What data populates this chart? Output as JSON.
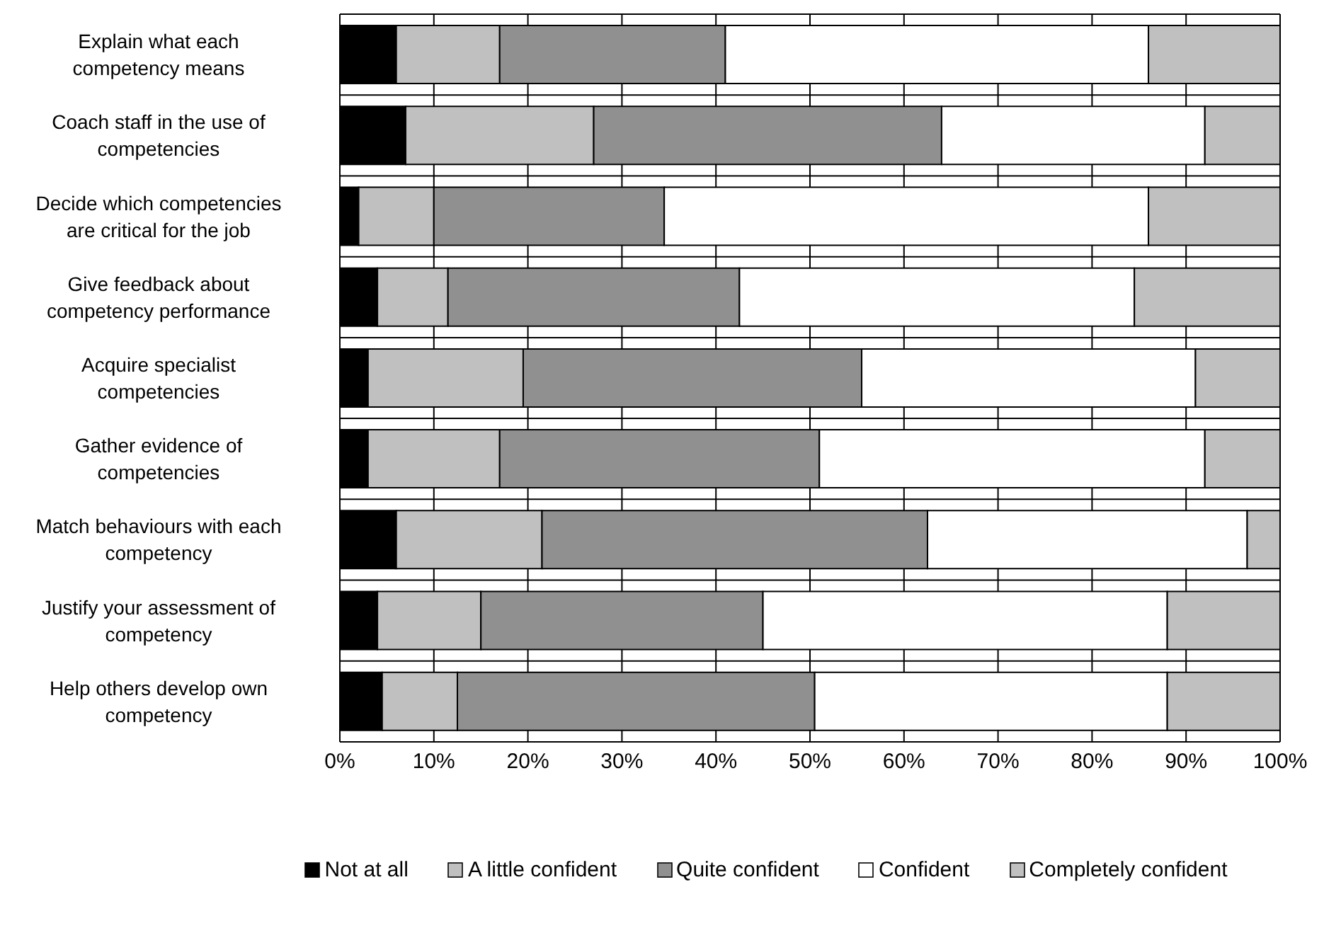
{
  "chart_data": {
    "type": "bar",
    "orientation": "horizontal",
    "stacked": true,
    "categories": [
      "Explain what each competency means",
      "Coach staff in the use of competencies",
      "Decide which competencies are critical for the job",
      "Give feedback about competency performance",
      "Acquire specialist competencies",
      "Gather evidence of competencies",
      "Match behaviours with each competency",
      "Justify your assessment of competency",
      "Help others develop own competency"
    ],
    "series": [
      {
        "name": "Not at all",
        "color": "#000000",
        "values": [
          6,
          7,
          2,
          4,
          3,
          3,
          6,
          4,
          4.5
        ]
      },
      {
        "name": "A little confident",
        "color": "#c0c0c0",
        "values": [
          11,
          20,
          8,
          7.5,
          16.5,
          14,
          15.5,
          11,
          8
        ]
      },
      {
        "name": "Quite confident",
        "color": "#909090",
        "values": [
          24,
          37,
          24.5,
          31,
          36,
          34,
          41,
          30,
          38
        ]
      },
      {
        "name": "Confident",
        "color": "#ffffff",
        "values": [
          45,
          28,
          51.5,
          42,
          35.5,
          41,
          34,
          43,
          37.5
        ]
      },
      {
        "name": "Completely confident",
        "color": "#c0c0c0",
        "values": [
          14,
          8,
          14,
          15.5,
          9,
          8,
          3.5,
          12,
          12
        ]
      }
    ],
    "xlim": [
      0,
      100
    ],
    "xticks": [
      {
        "value": 0,
        "label": "0%"
      },
      {
        "value": 10,
        "label": "10%"
      },
      {
        "value": 20,
        "label": "20%"
      },
      {
        "value": 30,
        "label": "30%"
      },
      {
        "value": 40,
        "label": "40%"
      },
      {
        "value": 50,
        "label": "50%"
      },
      {
        "value": 60,
        "label": "60%"
      },
      {
        "value": 70,
        "label": "70%"
      },
      {
        "value": 80,
        "label": "80%"
      },
      {
        "value": 90,
        "label": "90%"
      },
      {
        "value": 100,
        "label": "100%"
      }
    ],
    "grid": true,
    "legend": "bottom"
  }
}
